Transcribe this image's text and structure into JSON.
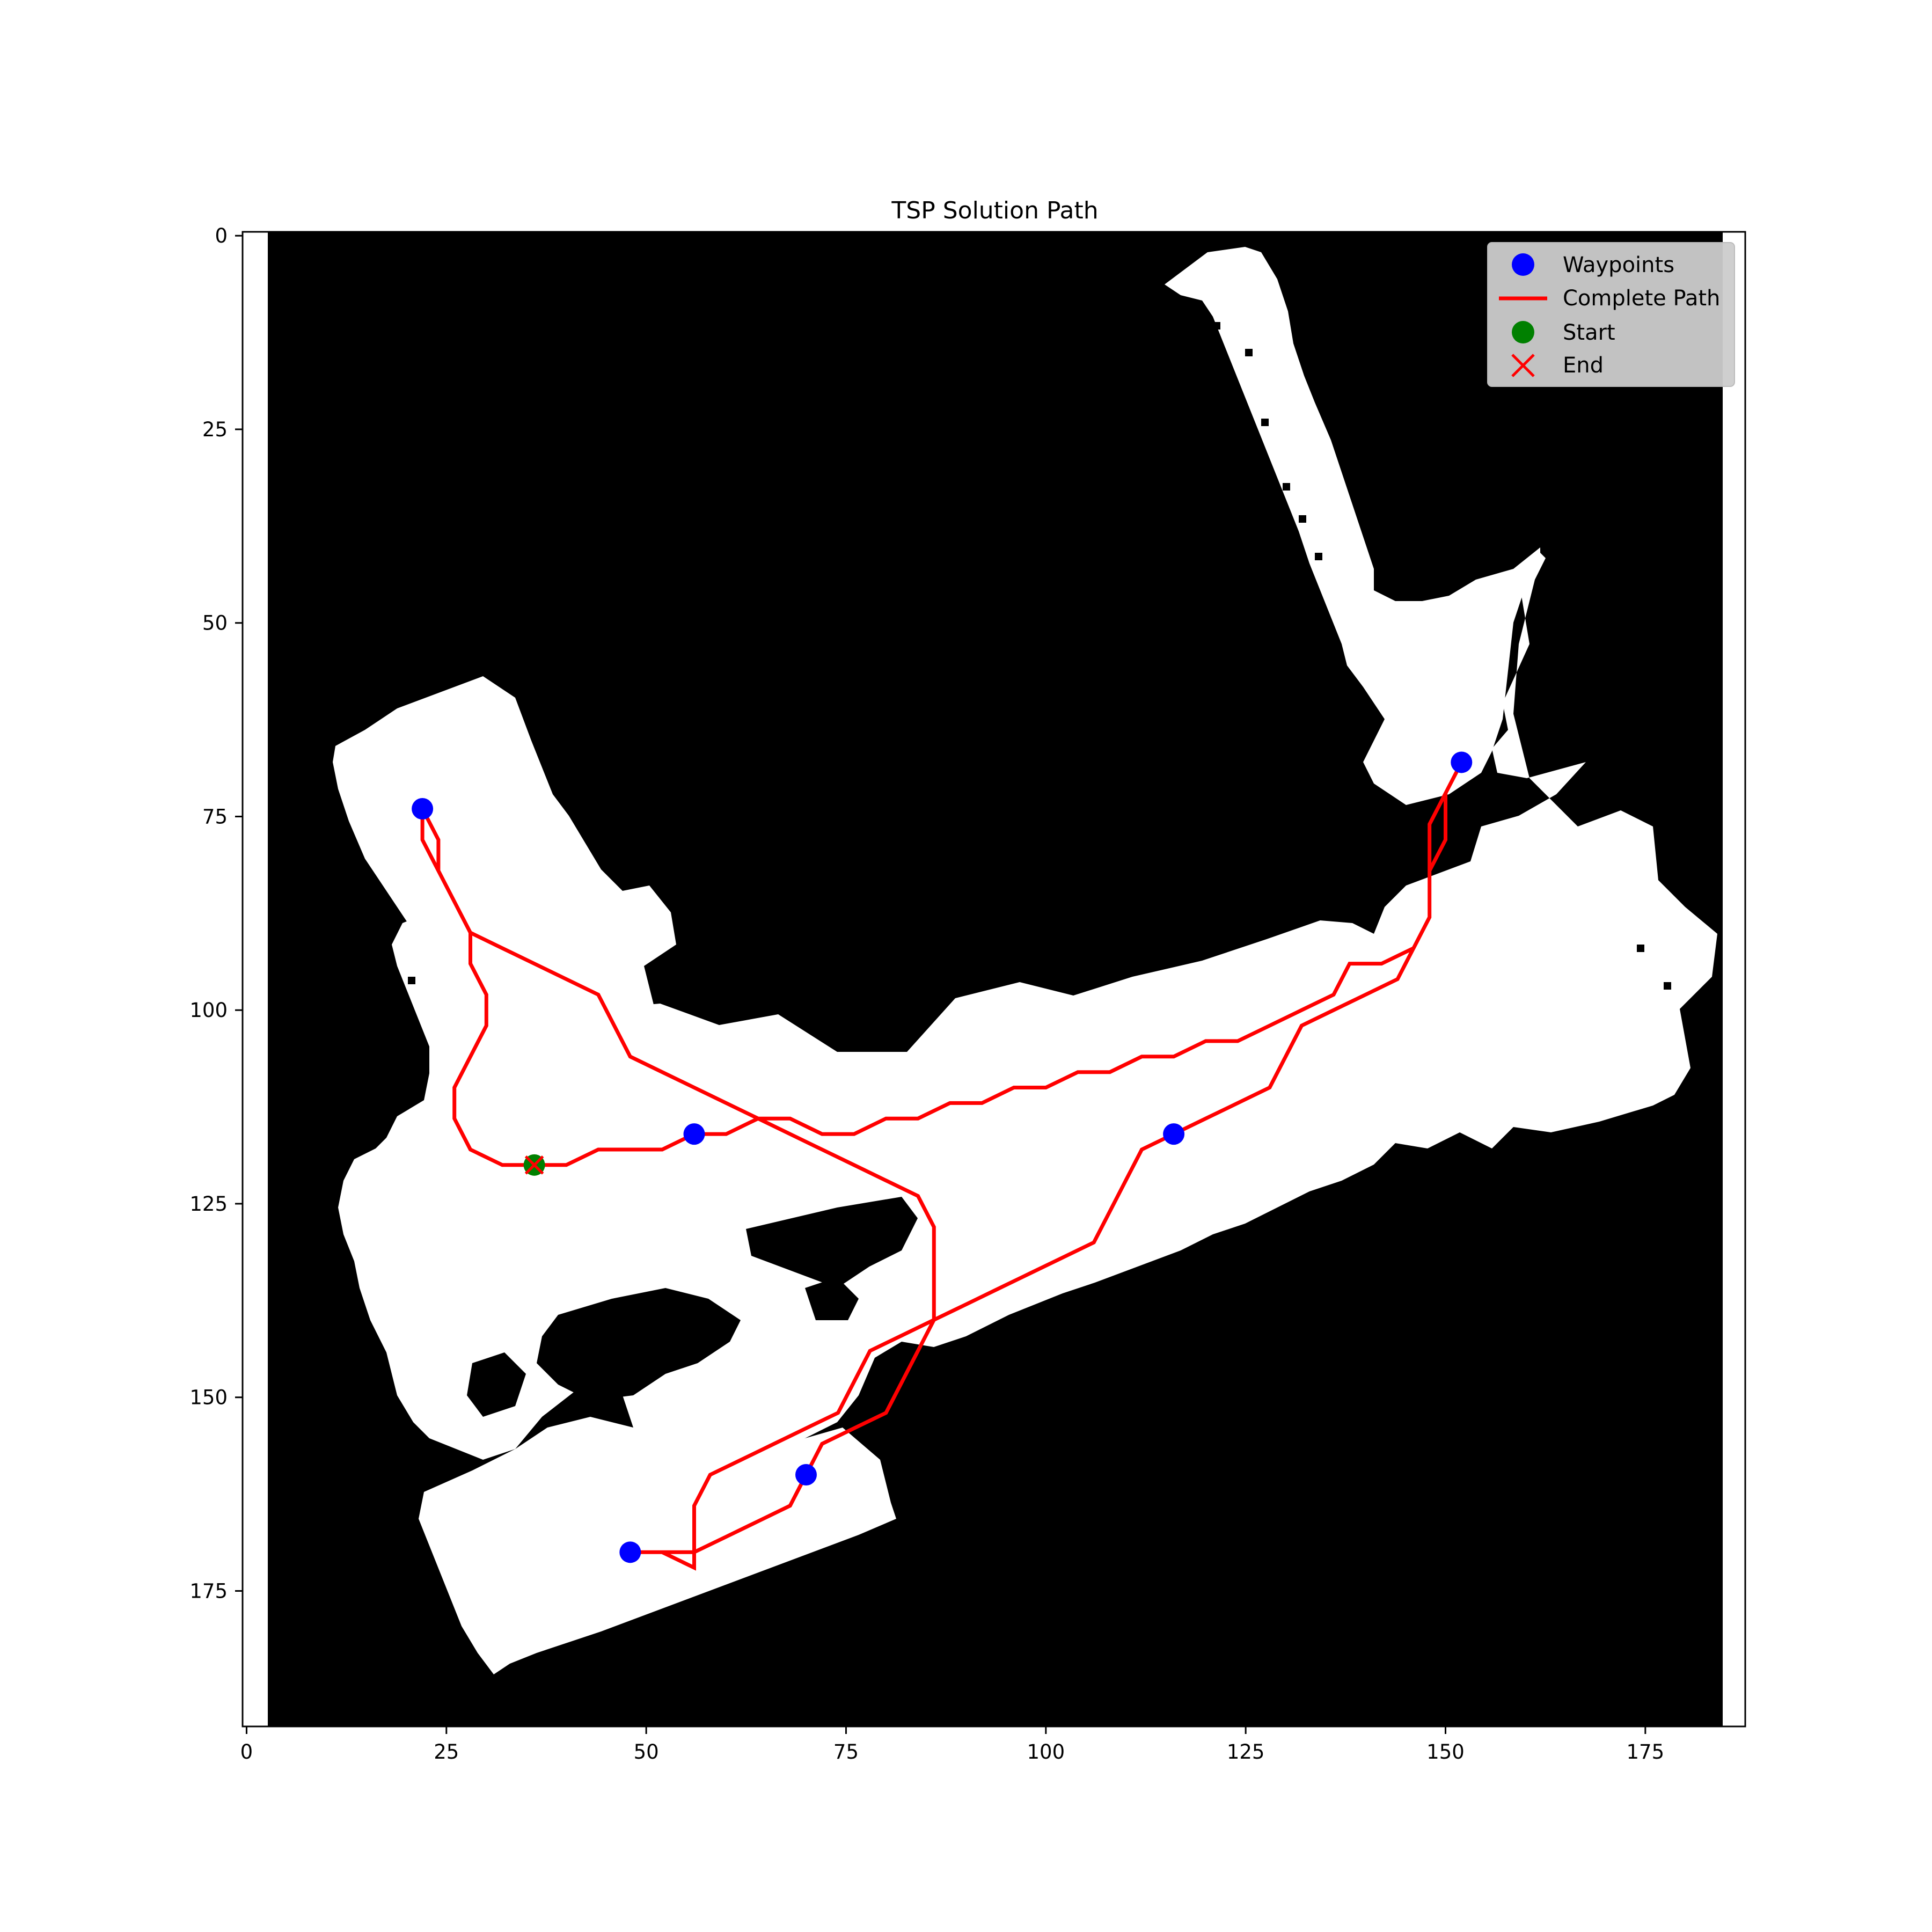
{
  "chart_data": {
    "type": "scatter",
    "title": "TSP Solution Path",
    "xlabel": "",
    "ylabel": "",
    "xlim": [
      -0.5,
      187.5
    ],
    "ylim": [
      192.5,
      -0.5
    ],
    "y_inverted": true,
    "xticks": [
      0,
      25,
      50,
      75,
      100,
      125,
      150,
      175
    ],
    "yticks": [
      0,
      25,
      50,
      75,
      100,
      125,
      150,
      175
    ],
    "grid": false,
    "legend_position": "top-right",
    "background_map": "occupancy grid (black = obstacle, white = free)",
    "series": [
      {
        "name": "Waypoints",
        "kind": "scatter",
        "color": "#0000ff",
        "marker": "circle",
        "points": [
          [
            22,
            74
          ],
          [
            152,
            68
          ],
          [
            56,
            116
          ],
          [
            116,
            116
          ],
          [
            70,
            160
          ],
          [
            48,
            170
          ]
        ]
      },
      {
        "name": "Complete Path",
        "kind": "line",
        "color": "#ff0000",
        "points": [
          [
            36,
            120
          ],
          [
            40,
            120
          ],
          [
            44,
            118
          ],
          [
            52,
            118
          ],
          [
            56,
            116
          ],
          [
            60,
            116
          ],
          [
            64,
            114
          ],
          [
            68,
            114
          ],
          [
            72,
            116
          ],
          [
            76,
            116
          ],
          [
            80,
            114
          ],
          [
            84,
            114
          ],
          [
            88,
            112
          ],
          [
            92,
            112
          ],
          [
            96,
            110
          ],
          [
            100,
            110
          ],
          [
            104,
            108
          ],
          [
            108,
            108
          ],
          [
            112,
            106
          ],
          [
            116,
            106
          ],
          [
            120,
            104
          ],
          [
            124,
            104
          ],
          [
            128,
            102
          ],
          [
            132,
            100
          ],
          [
            136,
            98
          ],
          [
            138,
            94
          ],
          [
            142,
            94
          ],
          [
            146,
            92
          ],
          [
            148,
            88
          ],
          [
            148,
            82
          ],
          [
            148,
            76
          ],
          [
            150,
            72
          ],
          [
            152,
            68
          ],
          [
            150,
            72
          ],
          [
            150,
            78
          ],
          [
            148,
            82
          ],
          [
            148,
            88
          ],
          [
            146,
            92
          ],
          [
            144,
            96
          ],
          [
            140,
            98
          ],
          [
            136,
            100
          ],
          [
            132,
            102
          ],
          [
            128,
            110
          ],
          [
            124,
            112
          ],
          [
            120,
            114
          ],
          [
            116,
            116
          ],
          [
            112,
            118
          ],
          [
            110,
            122
          ],
          [
            106,
            130
          ],
          [
            102,
            132
          ],
          [
            98,
            134
          ],
          [
            94,
            136
          ],
          [
            90,
            138
          ],
          [
            86,
            140
          ],
          [
            82,
            142
          ],
          [
            78,
            144
          ],
          [
            74,
            152
          ],
          [
            70,
            154
          ],
          [
            66,
            156
          ],
          [
            62,
            158
          ],
          [
            58,
            160
          ],
          [
            56,
            164
          ],
          [
            56,
            170
          ],
          [
            56,
            172
          ],
          [
            52,
            170
          ],
          [
            48,
            170
          ],
          [
            52,
            170
          ],
          [
            56,
            170
          ],
          [
            60,
            168
          ],
          [
            64,
            166
          ],
          [
            68,
            164
          ],
          [
            70,
            160
          ],
          [
            72,
            156
          ],
          [
            76,
            154
          ],
          [
            80,
            152
          ],
          [
            82,
            148
          ],
          [
            84,
            144
          ],
          [
            86,
            140
          ],
          [
            86,
            134
          ],
          [
            86,
            128
          ],
          [
            84,
            124
          ],
          [
            80,
            122
          ],
          [
            76,
            120
          ],
          [
            72,
            118
          ],
          [
            68,
            116
          ],
          [
            64,
            114
          ],
          [
            60,
            112
          ],
          [
            56,
            110
          ],
          [
            52,
            108
          ],
          [
            48,
            106
          ],
          [
            44,
            98
          ],
          [
            40,
            96
          ],
          [
            36,
            94
          ],
          [
            32,
            92
          ],
          [
            28,
            90
          ],
          [
            24,
            82
          ],
          [
            24,
            78
          ],
          [
            22,
            74
          ],
          [
            22,
            78
          ],
          [
            24,
            82
          ],
          [
            28,
            90
          ],
          [
            28,
            94
          ],
          [
            30,
            98
          ],
          [
            30,
            102
          ],
          [
            28,
            106
          ],
          [
            26,
            110
          ],
          [
            26,
            114
          ],
          [
            28,
            118
          ],
          [
            32,
            120
          ],
          [
            36,
            120
          ]
        ]
      },
      {
        "name": "Start",
        "kind": "scatter",
        "color": "#008000",
        "marker": "circle",
        "points": [
          [
            36,
            120
          ]
        ]
      },
      {
        "name": "End",
        "kind": "scatter",
        "color": "#ff0000",
        "marker": "x",
        "points": [
          [
            36,
            120
          ]
        ]
      }
    ]
  }
}
